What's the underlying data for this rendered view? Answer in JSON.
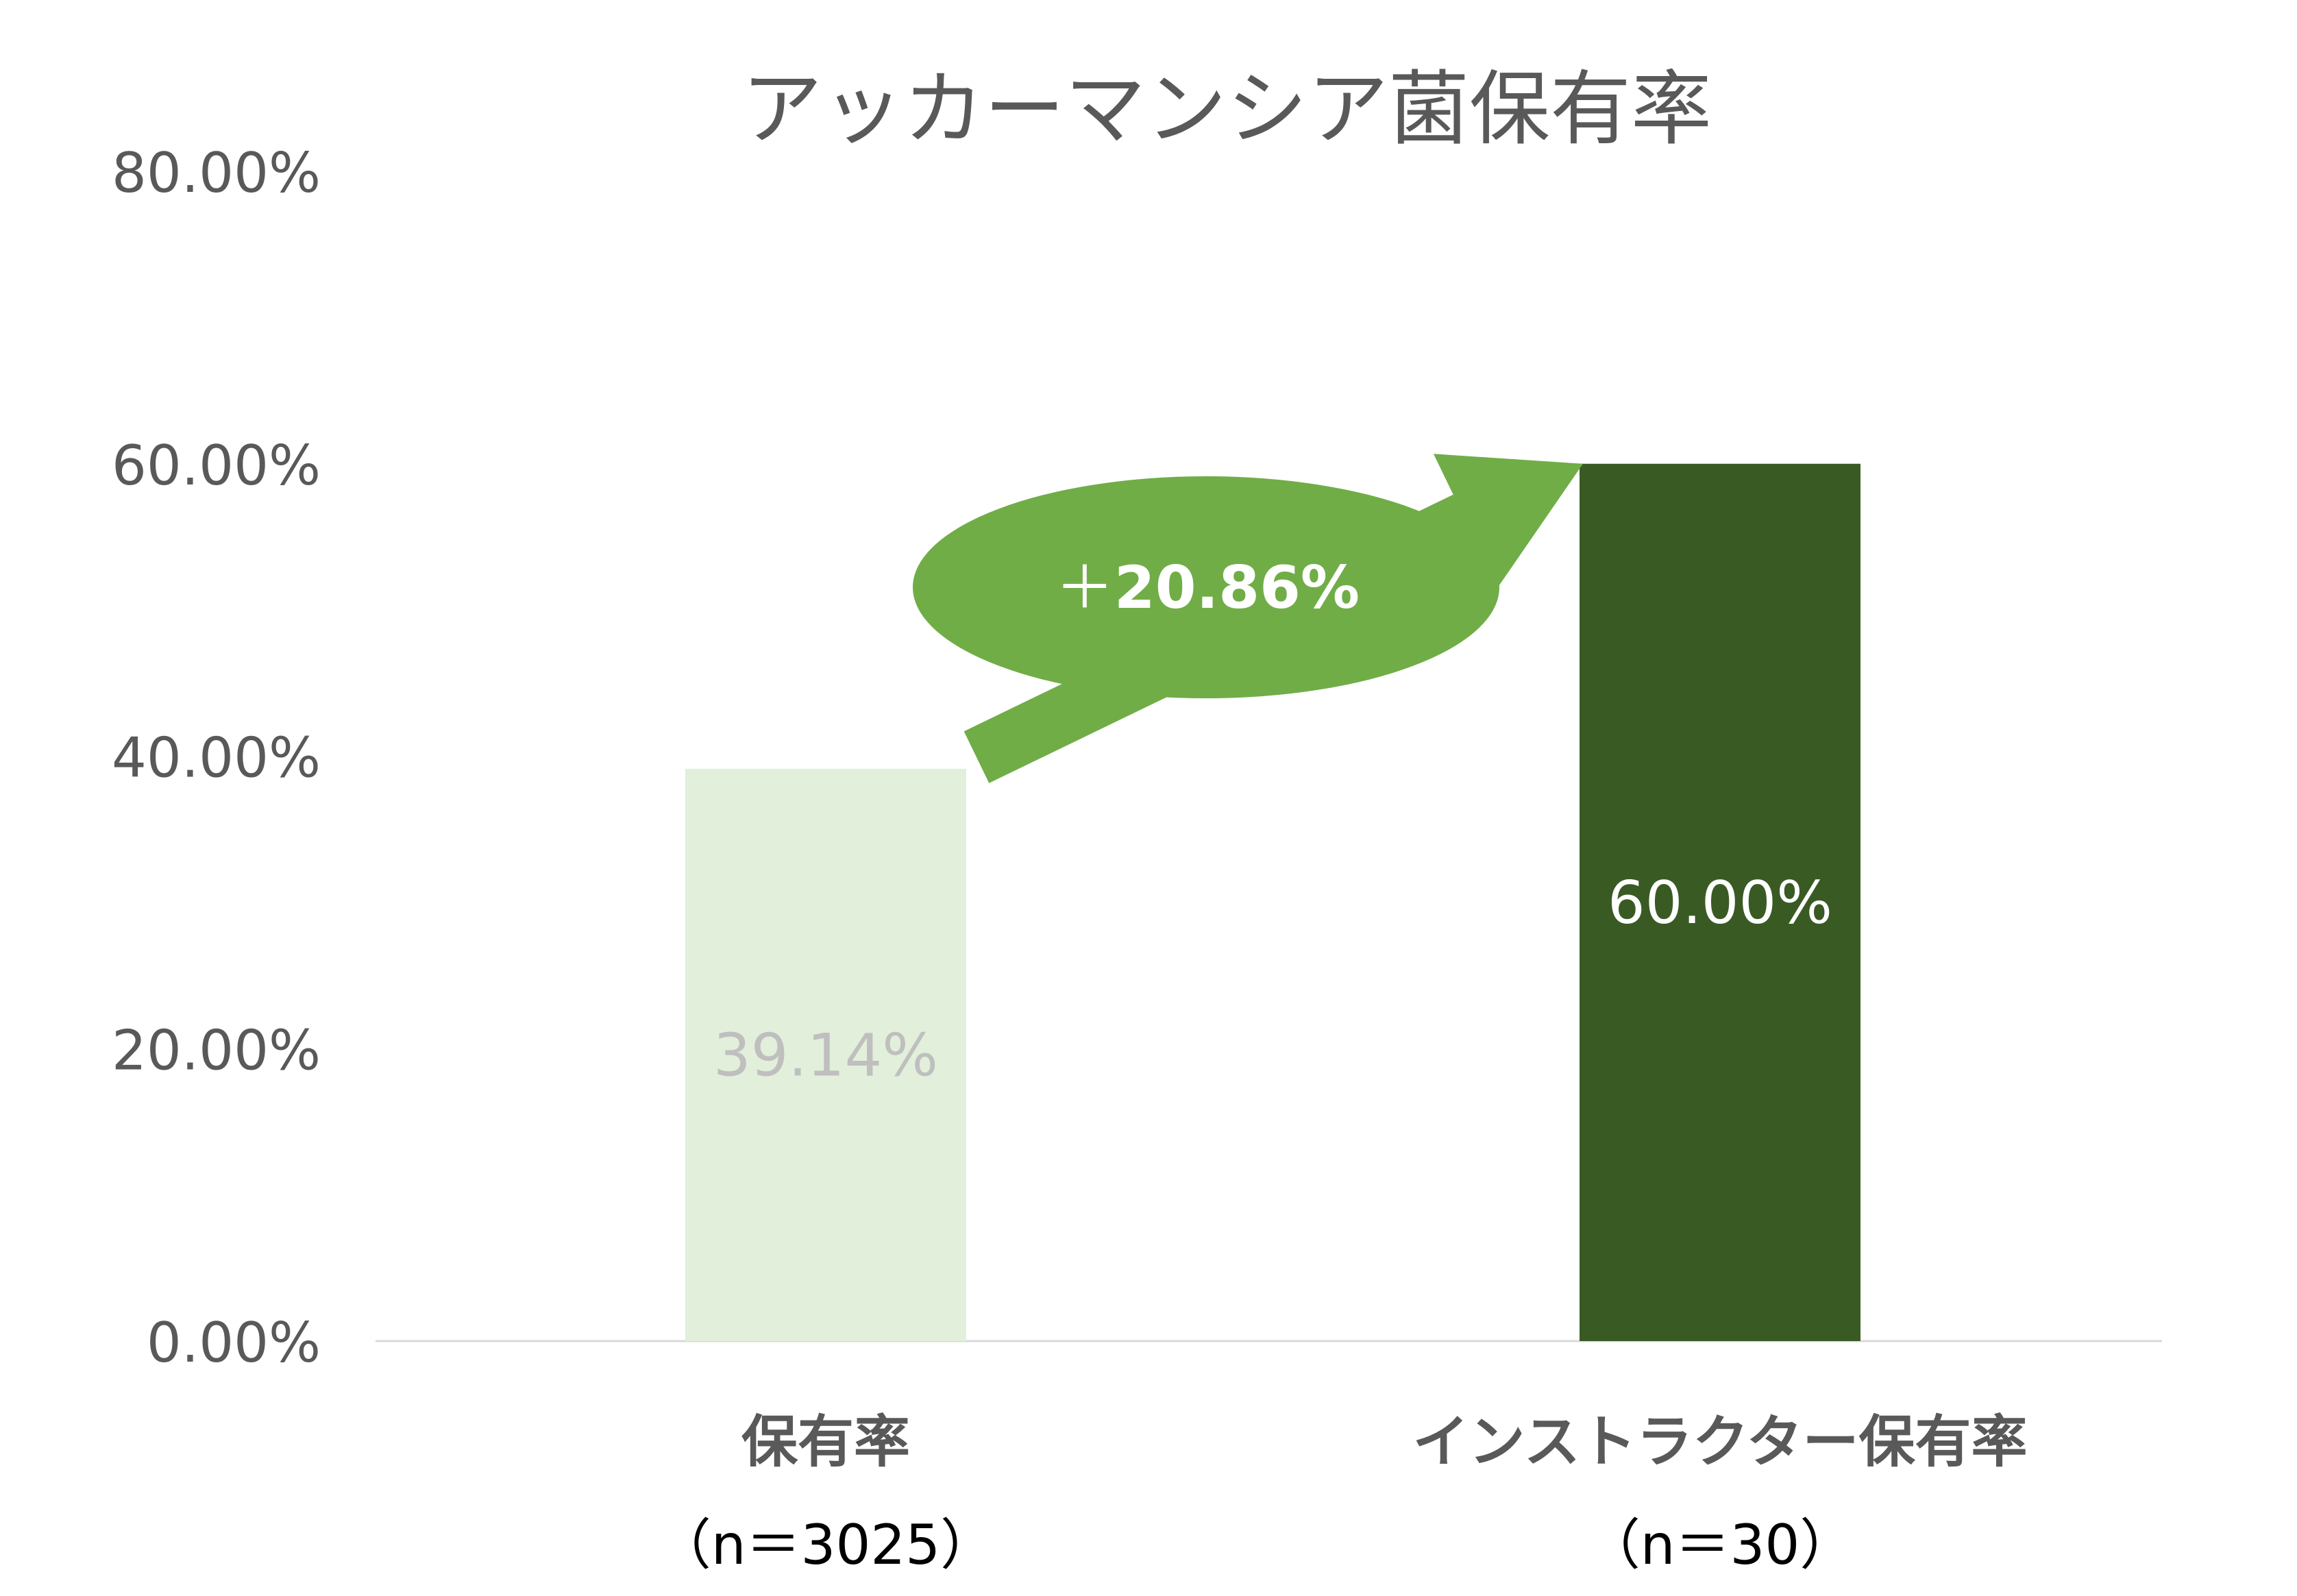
{
  "chart_data": {
    "type": "bar",
    "title": "アッカーマンシア菌保有率",
    "categories": [
      "保有率",
      "インストラクター保有率"
    ],
    "category_sublabels": [
      "（n＝3025）",
      "（n＝30）"
    ],
    "values": [
      39.14,
      60.0
    ],
    "data_labels": [
      "39.14%",
      "60.00%"
    ],
    "ylim": [
      0,
      80
    ],
    "yticks": [
      0,
      20,
      40,
      60,
      80
    ],
    "ytick_labels": [
      "0.00%",
      "20.00%",
      "40.00%",
      "60.00%",
      "80.00%"
    ],
    "grid": false,
    "legend": "none",
    "annotation": {
      "prefix": "＋",
      "value": "20.86%"
    },
    "colors": {
      "bar_1": "#e2efdb",
      "bar_2": "#3a5a24",
      "arrow": "#70ad47",
      "label_1": "#bfbfbf",
      "label_2": "#ffffff",
      "axis": "#d9d9d9",
      "tick_text": "#595959",
      "title_text": "#595959",
      "category_text": "#595959",
      "annotation_text": "#ffffff"
    }
  }
}
